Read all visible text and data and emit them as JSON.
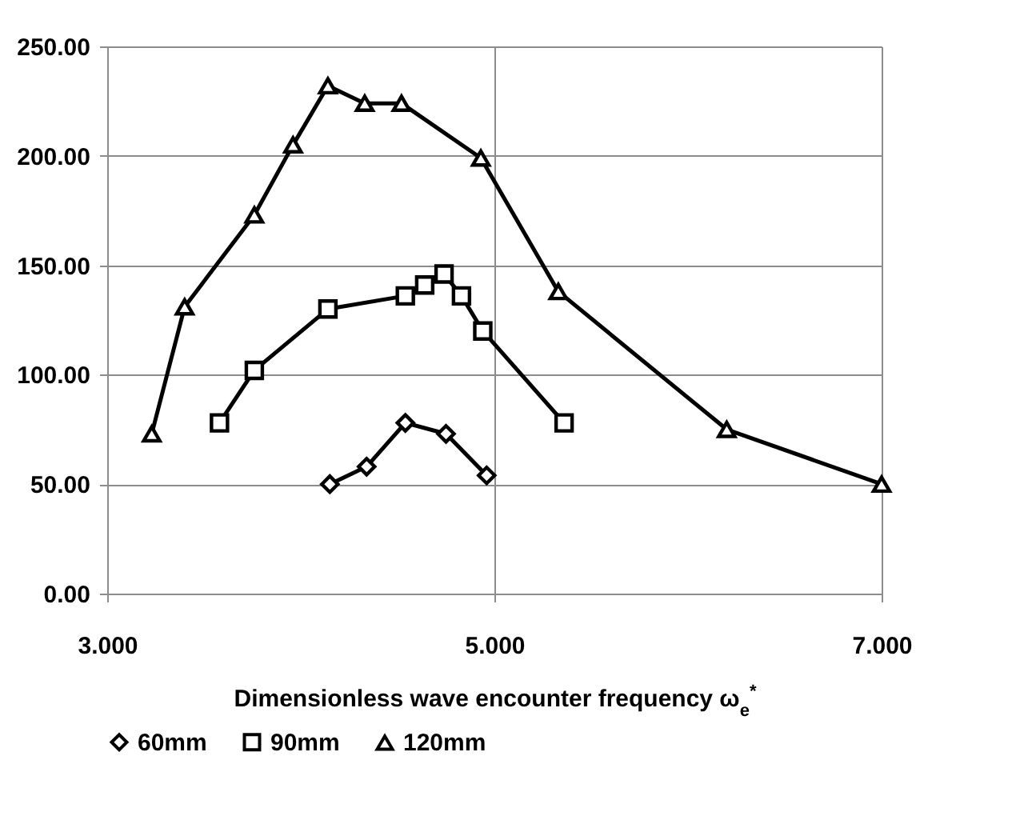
{
  "chart_data": {
    "type": "line",
    "xlabel": "Dimensionless wave encounter frequency ω$_{e}$$^{*}$",
    "xlim": [
      3,
      7
    ],
    "xticks": [
      {
        "value": 3,
        "label": "3.000"
      },
      {
        "value": 5,
        "label": "5.000"
      },
      {
        "value": 7,
        "label": "7.000"
      }
    ],
    "ylim": [
      0,
      250
    ],
    "yticks": [
      {
        "value": 0,
        "label": "0.00"
      },
      {
        "value": 50,
        "label": "50.00"
      },
      {
        "value": 100,
        "label": "100.00"
      },
      {
        "value": 150,
        "label": "150.00"
      },
      {
        "value": 200,
        "label": "200.00"
      },
      {
        "value": 250,
        "label": "250.00"
      }
    ],
    "grid": true,
    "legend": "bottom",
    "series": [
      {
        "name": "60mm",
        "color": "#000000",
        "marker": "diamond",
        "x": [
          4.15,
          4.34,
          4.54,
          4.75,
          4.96
        ],
        "values": [
          50,
          58,
          78,
          73,
          54
        ]
      },
      {
        "name": "90mm",
        "color": "#000000",
        "marker": "square",
        "x": [
          3.58,
          3.76,
          4.14,
          4.54,
          4.64,
          4.74,
          4.83,
          4.94,
          5.36
        ],
        "values": [
          78,
          102,
          130,
          136,
          141,
          146,
          136,
          120,
          78
        ]
      },
      {
        "name": "120mm",
        "color": "#000000",
        "marker": "triangle",
        "x": [
          3.23,
          3.4,
          3.76,
          3.96,
          4.14,
          4.33,
          4.52,
          4.93,
          5.33,
          6.2,
          7.0
        ],
        "values": [
          73,
          131,
          173,
          205,
          232,
          224,
          224,
          199,
          138,
          75,
          50
        ]
      }
    ]
  }
}
